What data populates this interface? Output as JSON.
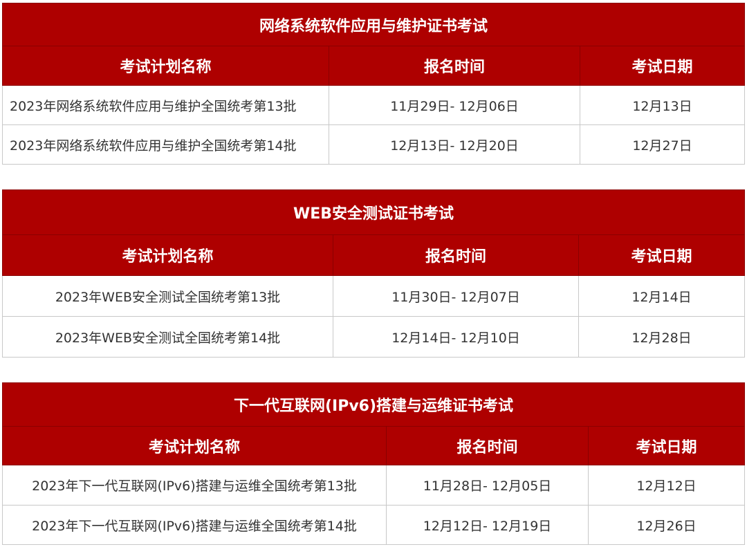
{
  "colors": {
    "header_bg": "#ae0000",
    "header_text": "#ffffff",
    "body_text": "#333333"
  },
  "tables": [
    {
      "title": "网络系统软件应用与维护证书考试",
      "headers": [
        "考试计划名称",
        "报名时间",
        "考试日期"
      ],
      "rows": [
        [
          "2023年网络系统软件应用与维护全国统考第13批",
          "11月29日- 12月06日",
          "12月13日"
        ],
        [
          "2023年网络系统软件应用与维护全国统考第14批",
          "12月13日- 12月20日",
          "12月27日"
        ]
      ]
    },
    {
      "title": "WEB安全测试证书考试",
      "headers": [
        "考试计划名称",
        "报名时间",
        "考试日期"
      ],
      "rows": [
        [
          "2023年WEB安全测试全国统考第13批",
          "11月30日- 12月07日",
          "12月14日"
        ],
        [
          "2023年WEB安全测试全国统考第14批",
          "12月14日- 12月10日",
          "12月28日"
        ]
      ]
    },
    {
      "title": "下一代互联网(IPv6)搭建与运维证书考试",
      "headers": [
        "考试计划名称",
        "报名时间",
        "考试日期"
      ],
      "rows": [
        [
          "2023年下一代互联网(IPv6)搭建与运维全国统考第13批",
          "11月28日- 12月05日",
          "12月12日"
        ],
        [
          "2023年下一代互联网(IPv6)搭建与运维全国统考第14批",
          "12月12日- 12月19日",
          "12月26日"
        ]
      ]
    }
  ]
}
